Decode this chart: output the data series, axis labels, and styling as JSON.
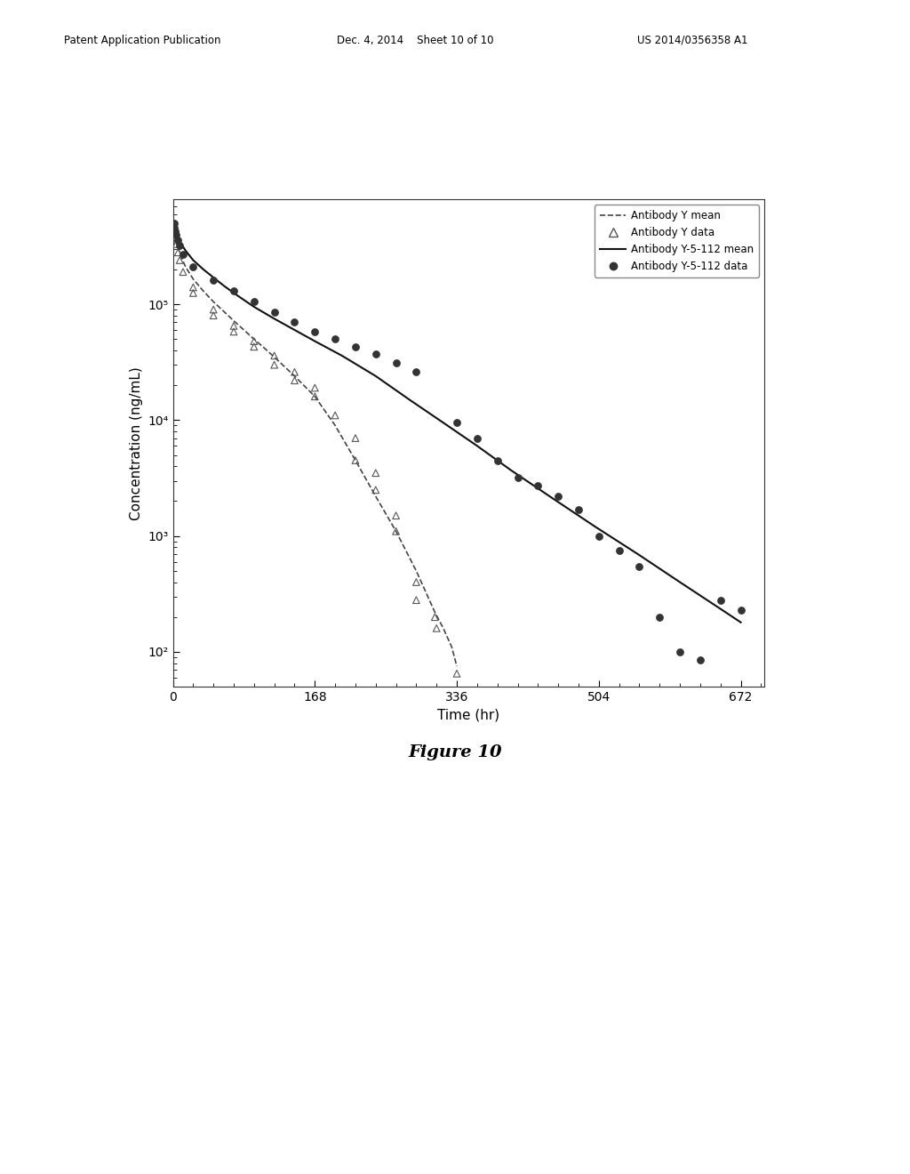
{
  "header_left": "Patent Application Publication",
  "header_center": "Dec. 4, 2014    Sheet 10 of 10",
  "header_right": "US 2014/0356358 A1",
  "figure_caption": "Figure 10",
  "xlabel": "Time (hr)",
  "ylabel": "Concentration (ng/mL)",
  "xlim": [
    0,
    700
  ],
  "ylim_log": [
    50,
    800000
  ],
  "xticks": [
    0,
    168,
    336,
    504,
    672
  ],
  "yticks_log": [
    100,
    1000,
    10000,
    100000
  ],
  "ytick_labels": [
    "10²",
    "10³",
    "10⁴",
    "10⁵"
  ],
  "legend_entries": [
    "Antibody Y mean",
    "Antibody Y data",
    "Antibody Y-5-112 mean",
    "Antibody Y-5-112 data"
  ],
  "antibody_Y_mean_t": [
    0,
    3,
    6,
    10,
    15,
    24,
    36,
    48,
    60,
    72,
    84,
    96,
    108,
    120,
    144,
    168,
    192,
    216,
    240,
    264,
    288,
    310,
    320,
    330,
    336
  ],
  "antibody_Y_mean_c": [
    420000,
    360000,
    310000,
    255000,
    210000,
    165000,
    130000,
    105000,
    87000,
    72000,
    60000,
    50000,
    42000,
    35000,
    24000,
    16000,
    9000,
    4500,
    2200,
    1100,
    500,
    220,
    160,
    110,
    75
  ],
  "antibody_Y_data_t": [
    1,
    2,
    3,
    4,
    6,
    8,
    12,
    24,
    24,
    48,
    48,
    72,
    72,
    96,
    96,
    120,
    120,
    144,
    144,
    168,
    168,
    192,
    216,
    216,
    240,
    240,
    264,
    264,
    288,
    288,
    310,
    312,
    336
  ],
  "antibody_Y_data_c": [
    450000,
    400000,
    370000,
    330000,
    280000,
    240000,
    190000,
    140000,
    125000,
    90000,
    80000,
    65000,
    58000,
    48000,
    43000,
    36000,
    30000,
    26000,
    22000,
    19000,
    16000,
    11000,
    7000,
    4500,
    3500,
    2500,
    1500,
    1100,
    400,
    280,
    200,
    160,
    65
  ],
  "antibody_Y5112_mean_t": [
    0,
    3,
    6,
    10,
    15,
    24,
    36,
    48,
    60,
    72,
    96,
    120,
    144,
    168,
    200,
    240,
    280,
    320,
    360,
    400,
    450,
    500,
    550,
    600,
    650,
    672
  ],
  "antibody_Y5112_mean_c": [
    450000,
    410000,
    370000,
    330000,
    290000,
    240000,
    200000,
    170000,
    145000,
    125000,
    95000,
    75000,
    60000,
    48000,
    36000,
    24000,
    15000,
    9500,
    6000,
    3700,
    2100,
    1200,
    700,
    400,
    230,
    180
  ],
  "antibody_Y5112_data_t": [
    1,
    2,
    3,
    4,
    6,
    8,
    12,
    24,
    48,
    72,
    96,
    120,
    144,
    168,
    192,
    216,
    240,
    264,
    288,
    336,
    360,
    384,
    408,
    432,
    456,
    480,
    504,
    528,
    552,
    576,
    600,
    624,
    648,
    672
  ],
  "antibody_Y5112_data_c": [
    500000,
    460000,
    430000,
    400000,
    360000,
    320000,
    270000,
    210000,
    160000,
    130000,
    105000,
    85000,
    70000,
    58000,
    50000,
    43000,
    37000,
    31000,
    26000,
    9500,
    7000,
    4500,
    3200,
    2700,
    2200,
    1700,
    1000,
    750,
    550,
    200,
    100,
    85,
    280,
    230
  ],
  "bg_color": "#ffffff",
  "line_color_dashed": "#444444",
  "line_color_solid": "#111111",
  "marker_color_triangle": "#555555",
  "marker_color_dot": "#333333"
}
